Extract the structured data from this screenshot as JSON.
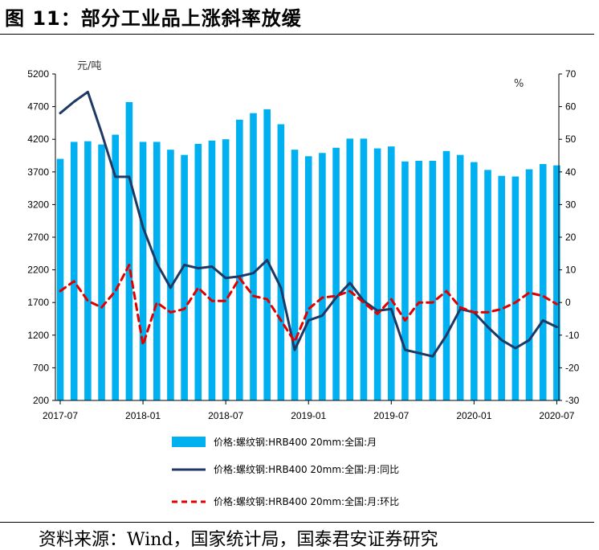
{
  "figure_title": "图 11：部分工业品上涨斜率放缓",
  "source": "资料来源：Wind，国家统计局，国泰君安证券研究",
  "chart_data": {
    "type": "bar",
    "title": "部分工业品上涨斜率放缓",
    "categories": [
      "2017-07",
      "2017-08",
      "2017-09",
      "2017-10",
      "2017-11",
      "2017-12",
      "2018-01",
      "2018-02",
      "2018-03",
      "2018-04",
      "2018-05",
      "2018-06",
      "2018-07",
      "2018-08",
      "2018-09",
      "2018-10",
      "2018-11",
      "2018-12",
      "2019-01",
      "2019-02",
      "2019-03",
      "2019-04",
      "2019-05",
      "2019-06",
      "2019-07",
      "2019-08",
      "2019-09",
      "2019-10",
      "2019-11",
      "2019-12",
      "2020-01",
      "2020-02",
      "2020-03",
      "2020-04",
      "2020-05",
      "2020-06",
      "2020-07"
    ],
    "x_tick_labels": [
      "2017-07",
      "2018-01",
      "2018-07",
      "2019-01",
      "2019-07",
      "2020-01",
      "2020-07"
    ],
    "left_axis": {
      "unit": "元/吨",
      "ylim": [
        200,
        5200
      ],
      "ticks": [
        "200",
        "700",
        "1200",
        "1700",
        "2200",
        "2700",
        "3200",
        "3700",
        "4200",
        "4700",
        "5200"
      ]
    },
    "right_axis": {
      "unit": "%",
      "ylim": [
        -30,
        70
      ],
      "ticks": [
        "-30",
        "-20",
        "-10",
        "0",
        "10",
        "20",
        "30",
        "40",
        "50",
        "60",
        "70"
      ]
    },
    "series": [
      {
        "name": "价格:螺纹钢:HRB400 20mm:全国:月",
        "type": "bar",
        "axis": "left",
        "color": "#00B0F0",
        "values": [
          3900,
          4160,
          4170,
          4120,
          4270,
          4770,
          4160,
          4160,
          4040,
          3960,
          4130,
          4180,
          4200,
          4500,
          4600,
          4660,
          4430,
          4040,
          3940,
          3990,
          4070,
          4210,
          4210,
          4060,
          4090,
          3860,
          3870,
          3870,
          4020,
          3960,
          3850,
          3730,
          3640,
          3630,
          3740,
          3820,
          3800
        ]
      },
      {
        "name": "价格:螺纹钢:HRB400 20mm:全国:月:同比",
        "type": "line",
        "axis": "right",
        "color": "#1F3864",
        "dash": "solid",
        "values": [
          58,
          61.5,
          64.5,
          52,
          38.5,
          38.5,
          23,
          12,
          4.5,
          11.5,
          10.5,
          11,
          7.5,
          8,
          9,
          13,
          4.5,
          -14.5,
          -5.5,
          -4,
          1.5,
          6,
          0.5,
          -2.5,
          -2,
          -14.5,
          -15.5,
          -16.5,
          -10,
          -2,
          -3,
          -7.5,
          -11.5,
          -14,
          -11.5,
          -5.5,
          -7.5
        ]
      },
      {
        "name": "价格:螺纹钢:HRB400 20mm:全国:月:环比",
        "type": "line",
        "axis": "right",
        "color": "#E00000",
        "dash": "dashed",
        "values": [
          3.5,
          6.5,
          0.5,
          -1.5,
          3.5,
          11.5,
          -13,
          0,
          -3,
          -2,
          4.5,
          0.5,
          0.5,
          7.5,
          2,
          1,
          -5.5,
          -12,
          -2,
          1.5,
          2,
          3.5,
          0,
          -3.5,
          1,
          -5.5,
          0,
          0,
          3.5,
          -1.5,
          -3,
          -3,
          -2,
          0,
          3,
          2,
          -0.5
        ]
      }
    ]
  }
}
